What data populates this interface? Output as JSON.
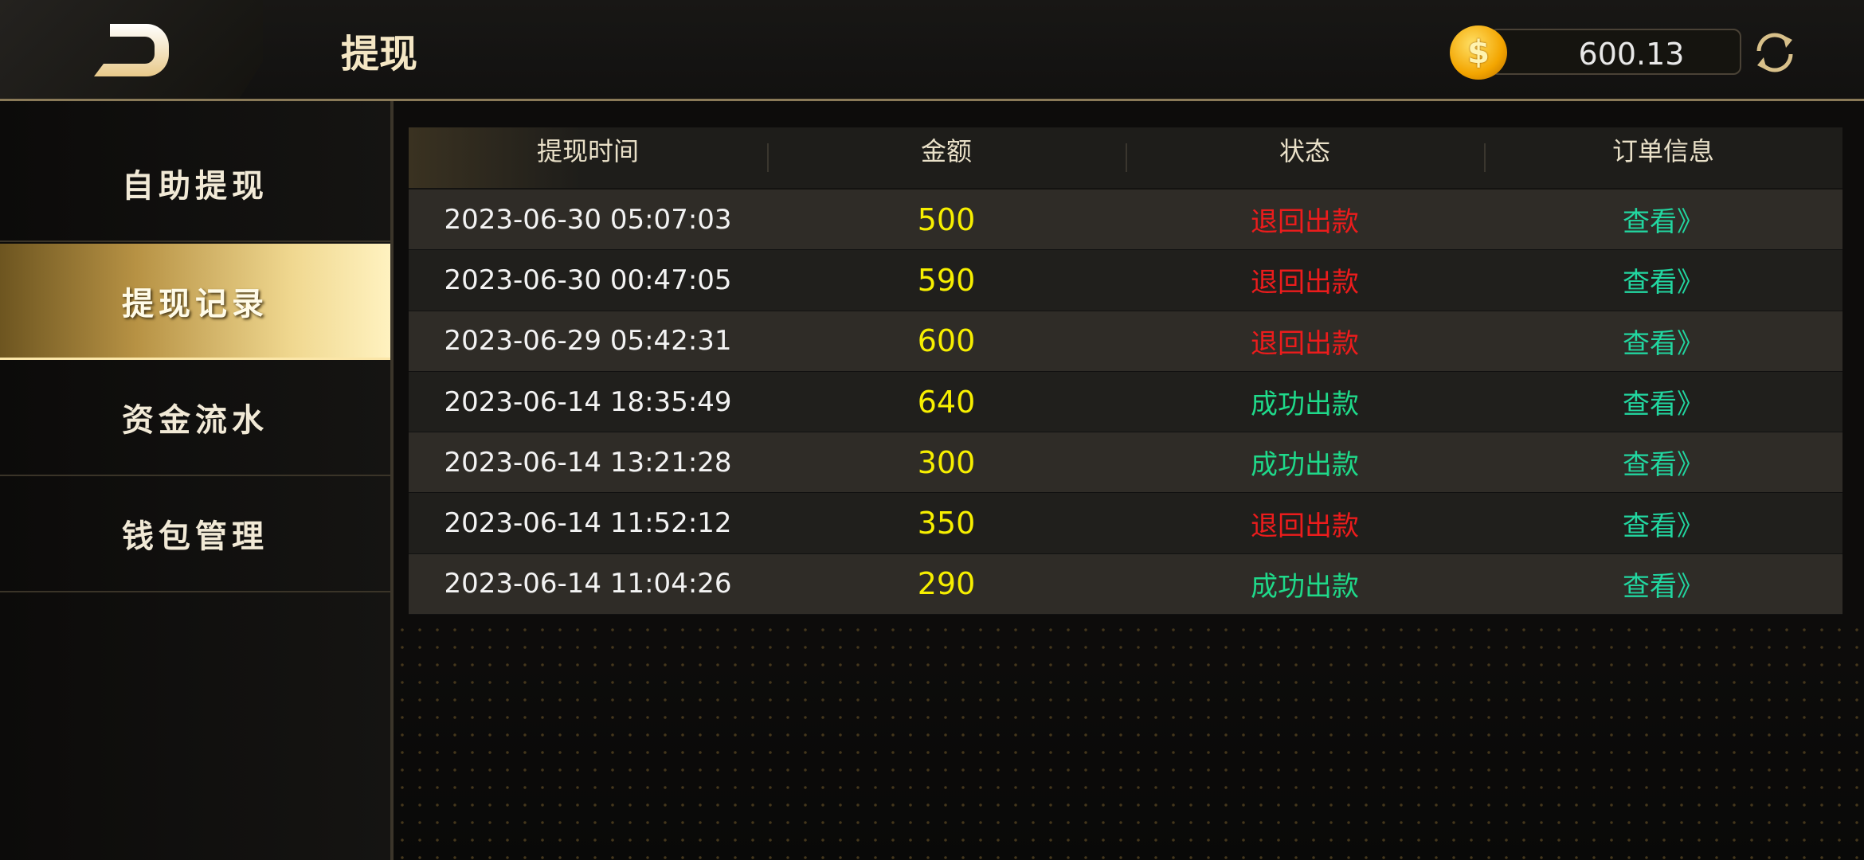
{
  "header": {
    "title": "提现",
    "balance": "600.13",
    "coin_icon": "$",
    "colors": {
      "accent": "#f0d890"
    }
  },
  "sidebar": {
    "items": [
      {
        "label": "自助提现",
        "active": false
      },
      {
        "label": "提现记录",
        "active": true
      },
      {
        "label": "资金流水",
        "active": false
      },
      {
        "label": "钱包管理",
        "active": false
      }
    ]
  },
  "table": {
    "headers": [
      "提现时间",
      "金额",
      "状态",
      "订单信息"
    ],
    "status_colors": {
      "退回出款": "#ec1c1c",
      "成功出款": "#1fd98a"
    },
    "rows": [
      {
        "time": "2023-06-30 05:07:03",
        "amount": "500",
        "status": "退回出款",
        "action": "查看》"
      },
      {
        "time": "2023-06-30 00:47:05",
        "amount": "590",
        "status": "退回出款",
        "action": "查看》"
      },
      {
        "time": "2023-06-29 05:42:31",
        "amount": "600",
        "status": "退回出款",
        "action": "查看》"
      },
      {
        "time": "2023-06-14 18:35:49",
        "amount": "640",
        "status": "成功出款",
        "action": "查看》"
      },
      {
        "time": "2023-06-14 13:21:28",
        "amount": "300",
        "status": "成功出款",
        "action": "查看》"
      },
      {
        "time": "2023-06-14 11:52:12",
        "amount": "350",
        "status": "退回出款",
        "action": "查看》"
      },
      {
        "time": "2023-06-14 11:04:26",
        "amount": "290",
        "status": "成功出款",
        "action": "查看》"
      }
    ]
  }
}
